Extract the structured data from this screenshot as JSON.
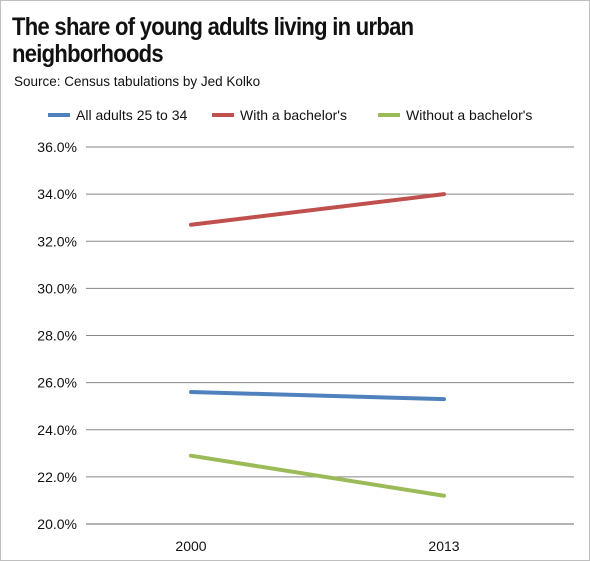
{
  "header": {
    "title": "The share of young adults living in urban neighborhoods",
    "subtitle": "Source: Census tabulations by Jed Kolko"
  },
  "colors": {
    "all_adults": "#4f81bd",
    "with_bachelors": "#c0504d",
    "without_bachelors": "#9bbb59",
    "gridline": "#868686"
  },
  "chart_data": {
    "type": "line",
    "title": "The share of young adults living in urban neighborhoods",
    "subtitle": "Source: Census tabulations by Jed Kolko",
    "categories": [
      "2000",
      "2013"
    ],
    "series": [
      {
        "name": "All adults 25 to 34",
        "values": [
          25.6,
          25.3
        ]
      },
      {
        "name": "With a bachelor's",
        "values": [
          32.7,
          34.0
        ]
      },
      {
        "name": "Without a bachelor's",
        "values": [
          22.9,
          21.2
        ]
      }
    ],
    "y_ticks": [
      "20.0%",
      "22.0%",
      "24.0%",
      "26.0%",
      "28.0%",
      "30.0%",
      "32.0%",
      "34.0%",
      "36.0%"
    ],
    "ylim": [
      20,
      36
    ],
    "xlabel": "",
    "ylabel": "",
    "grid": true,
    "legend_position": "top"
  }
}
